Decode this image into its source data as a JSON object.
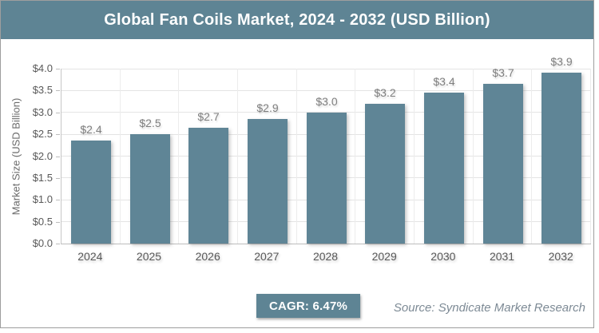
{
  "panel": {
    "title": "Global Fan Coils Market, 2024 - 2032 (USD Billion)"
  },
  "chart_data": {
    "type": "bar",
    "title": "Global Fan Coils Market, 2024 - 2032 (USD Billion)",
    "categories": [
      "2024",
      "2025",
      "2026",
      "2027",
      "2028",
      "2029",
      "2030",
      "2031",
      "2032"
    ],
    "values": [
      2.4,
      2.5,
      2.7,
      2.9,
      3.0,
      3.2,
      3.4,
      3.7,
      3.9
    ],
    "bar_labels": [
      "$2.4",
      "$2.5",
      "$2.7",
      "$2.9",
      "$3.0",
      "$3.2",
      "$3.4",
      "$3.7",
      "$3.9"
    ],
    "bar_heights_plotted": [
      2.35,
      2.5,
      2.65,
      2.85,
      3.0,
      3.2,
      3.45,
      3.65,
      3.9
    ],
    "xlabel": "",
    "ylabel": "Market Size (USD Billion)",
    "ylim": [
      0,
      4
    ],
    "ytick_step": 0.5,
    "ytick_labels": [
      "$0.0",
      "$0.5",
      "$1.0",
      "$1.5",
      "$2.0",
      "$2.5",
      "$3.0",
      "$3.5",
      "$4.0"
    ],
    "grid": true,
    "legend": false
  },
  "footer": {
    "cagr_label": "CAGR: 6.47%",
    "source": "Source: Syndicate Market Research"
  },
  "colors": {
    "accent_teal": "#5e8494",
    "bar": "#5f8596",
    "grid_h": "#e4e4e4",
    "grid_v": "#ececec",
    "tick_text": "#595959",
    "data_label": "#7f7f7f",
    "source_text": "#7d8a95",
    "border": "#9e9e9e",
    "title_text": "#ffffff"
  }
}
